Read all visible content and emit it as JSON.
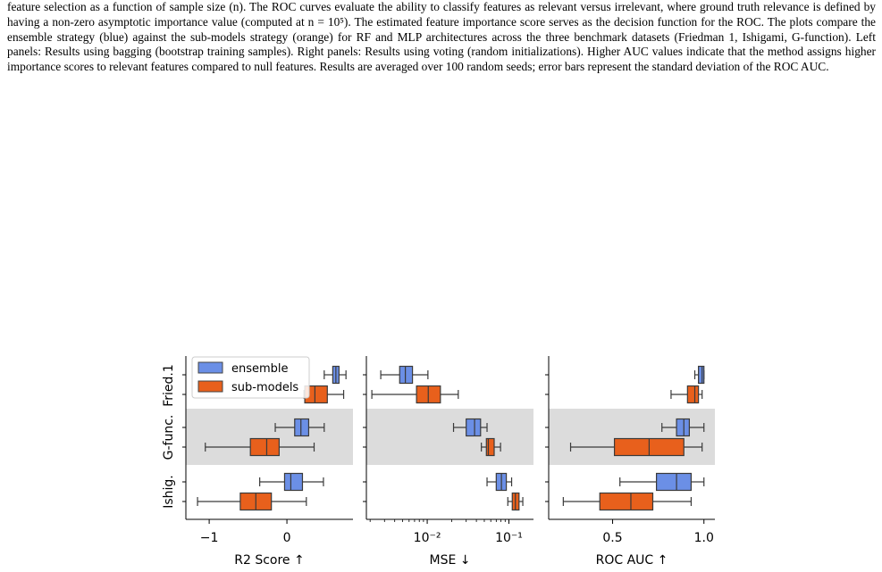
{
  "caption": {
    "text": "feature selection as a function of sample size (n). The ROC curves evaluate the ability to classify features as relevant versus irrelevant, where ground truth relevance is defined by having a non-zero asymptotic importance value (computed at n = 10⁵). The estimated feature importance score serves as the decision function for the ROC. The plots compare the ensemble strategy (blue) against the sub-models strategy (orange) for RF and MLP architectures across the three benchmark datasets (Friedman 1, Ishigami, G-function). Left panels: Results using bagging (bootstrap training samples). Right panels: Results using voting (random initializations). Higher AUC values indicate that the method assigns higher importance scores to relevant features compared to null features. Results are averaged over 100 random seeds; error bars represent the standard deviation of the ROC AUC."
  },
  "colors": {
    "ensemble": "#6b8fe6",
    "sub_models": "#e8601c",
    "band": "#dcdcdc"
  },
  "legend": {
    "ensemble": "ensemble",
    "sub_models": "sub-models",
    "placement": "upper-left"
  },
  "row_labels": [
    "Fried.1",
    "G-func.",
    "Ishig."
  ],
  "chart_data": [
    {
      "type": "box",
      "xlabel": "R2 Score ↑",
      "xscale": "linear",
      "xlim": [
        -1.3,
        0.85
      ],
      "ticks": [
        {
          "value": -1,
          "label": "−1"
        },
        {
          "value": 0,
          "label": "0"
        }
      ],
      "rows": [
        {
          "name": "Fried.1",
          "ensemble": {
            "whislo": 0.48,
            "q1": 0.59,
            "med": 0.63,
            "q3": 0.67,
            "whishi": 0.76
          },
          "sub_models": {
            "whislo": 0.22,
            "q1": 0.23,
            "med": 0.36,
            "q3": 0.52,
            "whishi": 0.73
          }
        },
        {
          "name": "G-func.",
          "ensemble": {
            "whislo": -0.15,
            "q1": 0.1,
            "med": 0.18,
            "q3": 0.28,
            "whishi": 0.48
          },
          "sub_models": {
            "whislo": -1.05,
            "q1": -0.47,
            "med": -0.26,
            "q3": -0.1,
            "whishi": 0.35
          }
        },
        {
          "name": "Ishig.",
          "ensemble": {
            "whislo": -0.35,
            "q1": -0.03,
            "med": 0.05,
            "q3": 0.2,
            "whishi": 0.47
          },
          "sub_models": {
            "whislo": -1.15,
            "q1": -0.6,
            "med": -0.4,
            "q3": -0.2,
            "whishi": 0.25
          }
        }
      ]
    },
    {
      "type": "box",
      "xlabel": "MSE ↓",
      "xscale": "log",
      "xlim": [
        0.0018,
        0.2
      ],
      "ticks": [
        {
          "value": 0.01,
          "label": "10⁻²"
        },
        {
          "value": 0.1,
          "label": "10⁻¹"
        }
      ],
      "rows": [
        {
          "name": "Fried.1",
          "ensemble": {
            "whislo": 0.0027,
            "q1": 0.0046,
            "med": 0.0054,
            "q3": 0.0066,
            "whishi": 0.0102
          },
          "sub_models": {
            "whislo": 0.0021,
            "q1": 0.0074,
            "med": 0.0103,
            "q3": 0.0145,
            "whishi": 0.024
          }
        },
        {
          "name": "G-func.",
          "ensemble": {
            "whislo": 0.021,
            "q1": 0.03,
            "med": 0.038,
            "q3": 0.045,
            "whishi": 0.054
          },
          "sub_models": {
            "whislo": 0.046,
            "q1": 0.053,
            "med": 0.056,
            "q3": 0.066,
            "whishi": 0.079
          }
        },
        {
          "name": "Ishig.",
          "ensemble": {
            "whislo": 0.054,
            "q1": 0.07,
            "med": 0.081,
            "q3": 0.093,
            "whishi": 0.108
          },
          "sub_models": {
            "whislo": 0.097,
            "q1": 0.11,
            "med": 0.12,
            "q3": 0.133,
            "whishi": 0.148
          }
        }
      ]
    },
    {
      "type": "box",
      "xlabel": "ROC AUC ↑",
      "xscale": "linear",
      "xlim": [
        0.15,
        1.06
      ],
      "ticks": [
        {
          "value": 0.5,
          "label": "0.5"
        },
        {
          "value": 1.0,
          "label": "1.0"
        }
      ],
      "rows": [
        {
          "name": "Fried.1",
          "ensemble": {
            "whislo": 0.95,
            "q1": 0.97,
            "med": 0.99,
            "q3": 1.0,
            "whishi": 1.0
          },
          "sub_models": {
            "whislo": 0.82,
            "q1": 0.91,
            "med": 0.95,
            "q3": 0.97,
            "whishi": 0.99
          }
        },
        {
          "name": "G-func.",
          "ensemble": {
            "whislo": 0.77,
            "q1": 0.85,
            "med": 0.89,
            "q3": 0.92,
            "whishi": 1.0
          },
          "sub_models": {
            "whislo": 0.27,
            "q1": 0.51,
            "med": 0.7,
            "q3": 0.89,
            "whishi": 0.99
          }
        },
        {
          "name": "Ishig.",
          "ensemble": {
            "whislo": 0.54,
            "q1": 0.74,
            "med": 0.85,
            "q3": 0.93,
            "whishi": 1.0
          },
          "sub_models": {
            "whislo": 0.23,
            "q1": 0.43,
            "med": 0.6,
            "q3": 0.72,
            "whishi": 0.93
          }
        }
      ]
    }
  ]
}
